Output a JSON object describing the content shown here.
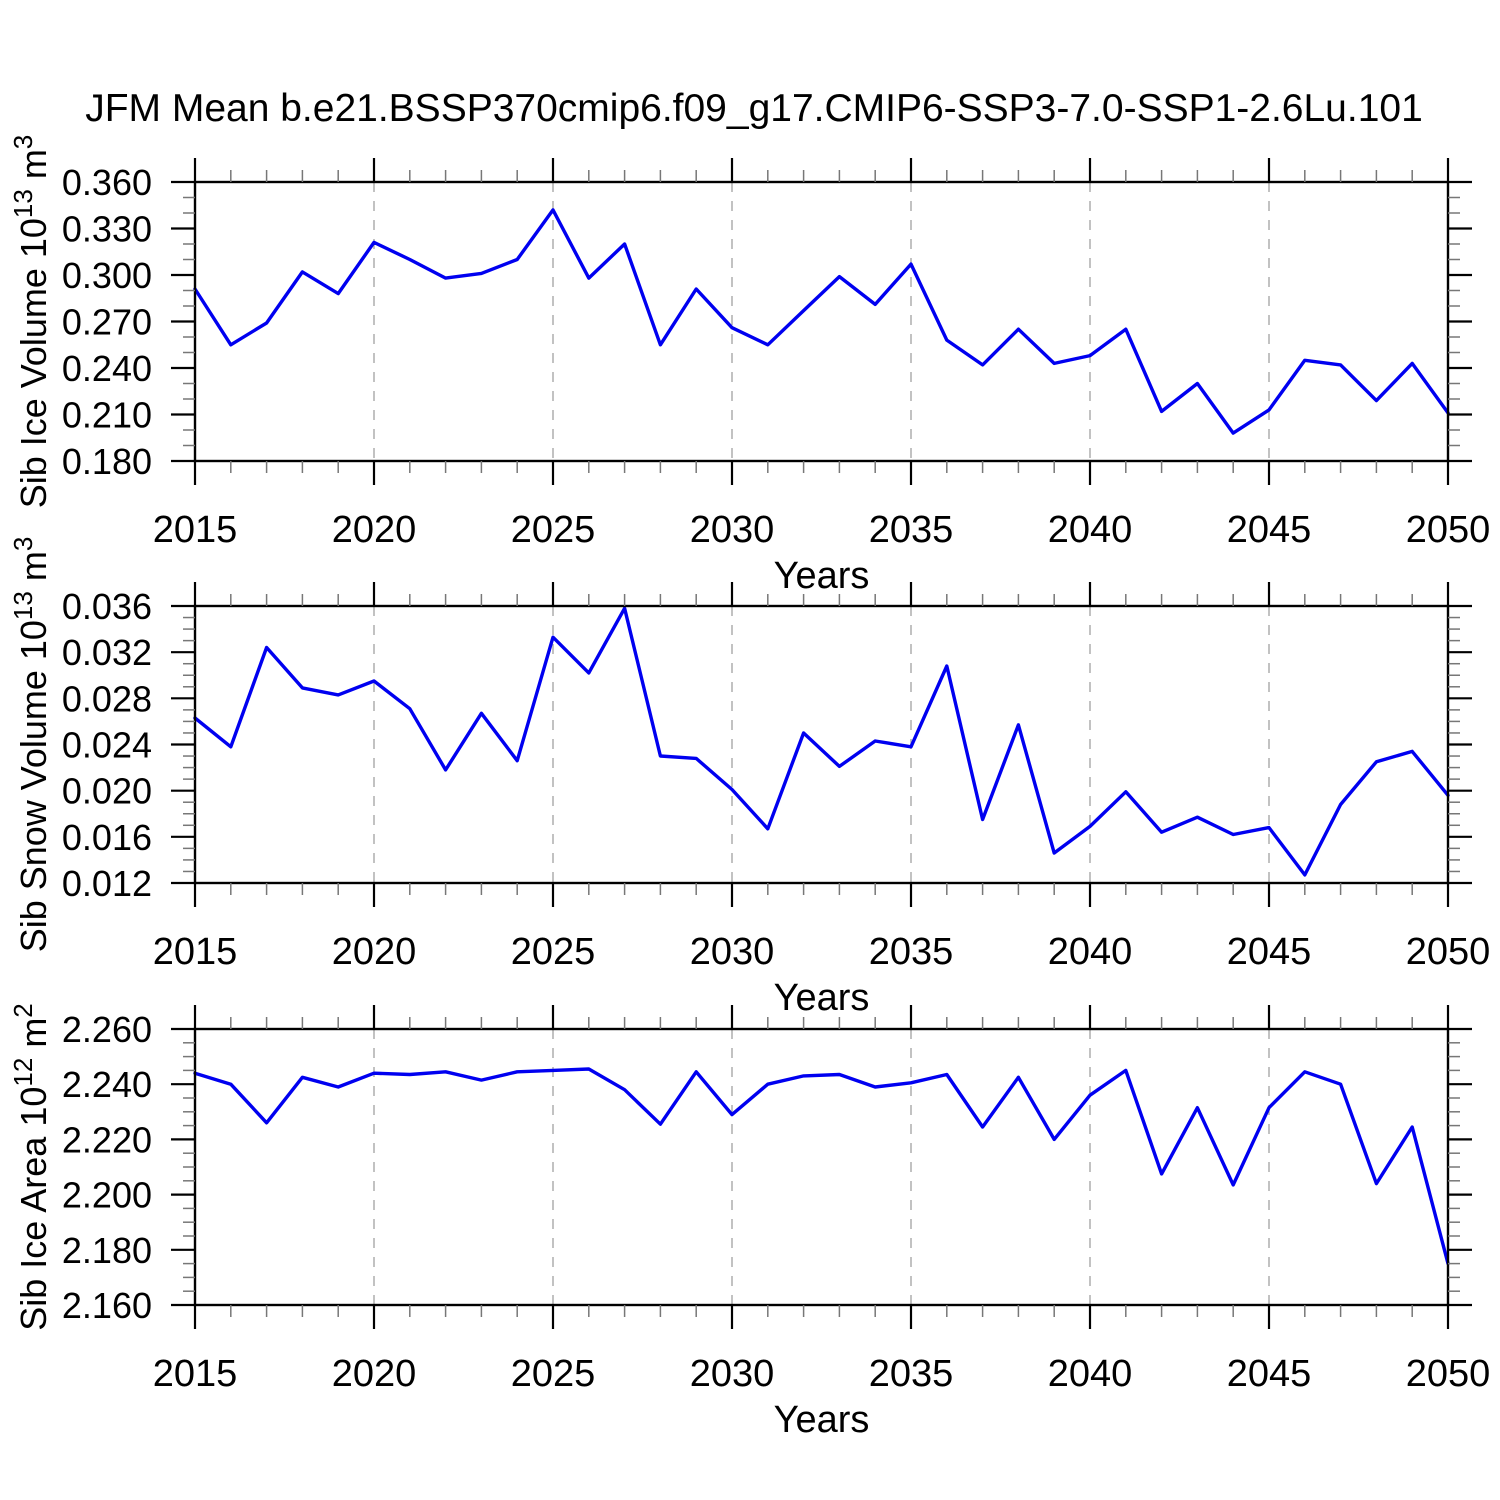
{
  "title": "JFM Mean b.e21.BSSP370cmip6.f09_g17.CMIP6-SSP3-7.0-SSP1-2.6Lu.101",
  "colors": {
    "line": "#0000f0",
    "grid": "#a8a8a8",
    "axis": "#000000",
    "minor_tick": "#777777",
    "background": "#ffffff"
  },
  "chart_data": [
    {
      "type": "line",
      "name": "sib-ice-volume",
      "ylabel_text": "Sib Ice Volume 10^13 m^3",
      "ylabel_parts": [
        {
          "t": "Sib Ice Volume 10",
          "sup": false
        },
        {
          "t": "13",
          "sup": true
        },
        {
          "t": " m",
          "sup": false
        },
        {
          "t": "3",
          "sup": true
        }
      ],
      "xlabel": "Years",
      "xlim": [
        2015,
        2050
      ],
      "ylim": [
        0.18,
        0.36
      ],
      "yticks": [
        "0.180",
        "0.210",
        "0.240",
        "0.270",
        "0.300",
        "0.330",
        "0.360"
      ],
      "yminor": 0.01,
      "xticks": [
        2015,
        2020,
        2025,
        2030,
        2035,
        2040,
        2045,
        2050
      ],
      "xminor": 1,
      "grid_x": [
        2020,
        2025,
        2030,
        2035,
        2040,
        2045
      ],
      "x": [
        2015,
        2016,
        2017,
        2018,
        2019,
        2020,
        2021,
        2022,
        2023,
        2024,
        2025,
        2026,
        2027,
        2028,
        2029,
        2030,
        2031,
        2032,
        2033,
        2034,
        2035,
        2036,
        2037,
        2038,
        2039,
        2040,
        2041,
        2042,
        2043,
        2044,
        2045,
        2046,
        2047,
        2048,
        2049,
        2050
      ],
      "values": [
        0.291,
        0.255,
        0.269,
        0.302,
        0.288,
        0.321,
        0.31,
        0.298,
        0.301,
        0.31,
        0.342,
        0.298,
        0.32,
        0.255,
        0.291,
        0.266,
        0.255,
        0.277,
        0.299,
        0.281,
        0.307,
        0.258,
        0.242,
        0.265,
        0.243,
        0.248,
        0.265,
        0.212,
        0.23,
        0.198,
        0.213,
        0.245,
        0.242,
        0.219,
        0.243,
        0.211
      ]
    },
    {
      "type": "line",
      "name": "sib-snow-volume",
      "ylabel_text": "Sib Snow Volume 10^13 m^3",
      "ylabel_parts": [
        {
          "t": "Sib Snow Volume 10",
          "sup": false
        },
        {
          "t": "13",
          "sup": true
        },
        {
          "t": " m",
          "sup": false
        },
        {
          "t": "3",
          "sup": true
        }
      ],
      "xlabel": "Years",
      "xlim": [
        2015,
        2050
      ],
      "ylim": [
        0.012,
        0.036
      ],
      "yticks": [
        "0.012",
        "0.016",
        "0.020",
        "0.024",
        "0.028",
        "0.032",
        "0.036"
      ],
      "yminor": 0.001,
      "xticks": [
        2015,
        2020,
        2025,
        2030,
        2035,
        2040,
        2045,
        2050
      ],
      "xminor": 1,
      "grid_x": [
        2020,
        2025,
        2030,
        2035,
        2040,
        2045
      ],
      "x": [
        2015,
        2016,
        2017,
        2018,
        2019,
        2020,
        2021,
        2022,
        2023,
        2024,
        2025,
        2026,
        2027,
        2028,
        2029,
        2030,
        2031,
        2032,
        2033,
        2034,
        2035,
        2036,
        2037,
        2038,
        2039,
        2040,
        2041,
        2042,
        2043,
        2044,
        2045,
        2046,
        2047,
        2048,
        2049,
        2050
      ],
      "values": [
        0.0263,
        0.0238,
        0.0324,
        0.0289,
        0.0283,
        0.0295,
        0.0271,
        0.0218,
        0.0267,
        0.0226,
        0.0333,
        0.0302,
        0.0358,
        0.023,
        0.0228,
        0.0201,
        0.0167,
        0.025,
        0.0221,
        0.0243,
        0.0238,
        0.0308,
        0.0175,
        0.0257,
        0.0146,
        0.0169,
        0.0199,
        0.0164,
        0.0177,
        0.0162,
        0.0168,
        0.0127,
        0.0188,
        0.0225,
        0.0234,
        0.0196
      ]
    },
    {
      "type": "line",
      "name": "sib-ice-area",
      "ylabel_text": "Sib Ice Area 10^12 m^2",
      "ylabel_parts": [
        {
          "t": "Sib Ice Area 10",
          "sup": false
        },
        {
          "t": "12",
          "sup": true
        },
        {
          "t": " m",
          "sup": false
        },
        {
          "t": "2",
          "sup": true
        }
      ],
      "xlabel": "Years",
      "xlim": [
        2015,
        2050
      ],
      "ylim": [
        2.16,
        2.26
      ],
      "yticks": [
        "2.160",
        "2.180",
        "2.200",
        "2.220",
        "2.240",
        "2.260"
      ],
      "yminor": 0.005,
      "xticks": [
        2015,
        2020,
        2025,
        2030,
        2035,
        2040,
        2045,
        2050
      ],
      "xminor": 1,
      "grid_x": [
        2020,
        2025,
        2030,
        2035,
        2040,
        2045
      ],
      "x": [
        2015,
        2016,
        2017,
        2018,
        2019,
        2020,
        2021,
        2022,
        2023,
        2024,
        2025,
        2026,
        2027,
        2028,
        2029,
        2030,
        2031,
        2032,
        2033,
        2034,
        2035,
        2036,
        2037,
        2038,
        2039,
        2040,
        2041,
        2042,
        2043,
        2044,
        2045,
        2046,
        2047,
        2048,
        2049,
        2050
      ],
      "values": [
        2.244,
        2.24,
        2.226,
        2.2425,
        2.239,
        2.244,
        2.2435,
        2.2445,
        2.2415,
        2.2445,
        2.245,
        2.2455,
        2.238,
        2.2255,
        2.2445,
        2.229,
        2.24,
        2.243,
        2.2435,
        2.239,
        2.2405,
        2.2435,
        2.2245,
        2.2425,
        2.22,
        2.236,
        2.245,
        2.2075,
        2.2315,
        2.2035,
        2.2315,
        2.2445,
        2.24,
        2.204,
        2.2245,
        2.175
      ]
    }
  ]
}
